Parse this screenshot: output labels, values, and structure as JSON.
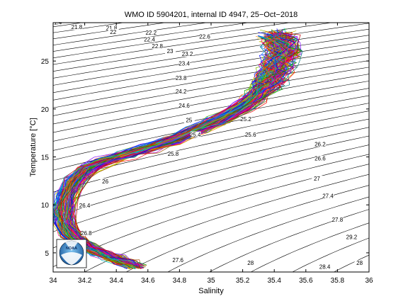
{
  "chart_data": {
    "type": "line",
    "title": "WMO ID 5904201, internal ID 4947, 25−Oct−2018",
    "xlabel": "Salinity",
    "ylabel": "Temperature [°C]",
    "xlim": [
      34,
      36
    ],
    "ylim": [
      3,
      29
    ],
    "xticks": [
      "34",
      "34.2",
      "34.4",
      "34.6",
      "34.8",
      "35",
      "35.2",
      "35.4",
      "35.6",
      "35.8",
      "36"
    ],
    "yticks": [
      "5",
      "10",
      "15",
      "20",
      "25"
    ],
    "grid": false,
    "isopycnal_labels": [
      {
        "text": "21.4",
        "s": 34.02,
        "t": 28.9
      },
      {
        "text": "21.8",
        "s": 34.15,
        "t": 28.4
      },
      {
        "text": "21.8",
        "s": 34.37,
        "t": 28.3
      },
      {
        "text": "22",
        "s": 34.38,
        "t": 27.9
      },
      {
        "text": "22.2",
        "s": 34.62,
        "t": 27.8
      },
      {
        "text": "22.4",
        "s": 34.61,
        "t": 27.1
      },
      {
        "text": "22.6",
        "s": 34.96,
        "t": 27.4
      },
      {
        "text": "22.8",
        "s": 34.66,
        "t": 26.4
      },
      {
        "text": "23",
        "s": 34.74,
        "t": 25.9
      },
      {
        "text": "23.2",
        "s": 34.85,
        "t": 25.6
      },
      {
        "text": "23.4",
        "s": 34.83,
        "t": 24.6
      },
      {
        "text": "23.8",
        "s": 34.81,
        "t": 23.1
      },
      {
        "text": "24.2",
        "s": 34.81,
        "t": 21.7
      },
      {
        "text": "24.6",
        "s": 34.83,
        "t": 20.2
      },
      {
        "text": "25",
        "s": 34.86,
        "t": 18.7
      },
      {
        "text": "25.2",
        "s": 35.22,
        "t": 18.8
      },
      {
        "text": "25.4",
        "s": 34.9,
        "t": 17.2
      },
      {
        "text": "25.6",
        "s": 35.25,
        "t": 17.2
      },
      {
        "text": "25.8",
        "s": 34.76,
        "t": 15.2
      },
      {
        "text": "26.2",
        "s": 35.69,
        "t": 16.2
      },
      {
        "text": "26.6",
        "s": 35.69,
        "t": 14.7
      },
      {
        "text": "26",
        "s": 34.33,
        "t": 12.3
      },
      {
        "text": "27",
        "s": 35.67,
        "t": 12.6
      },
      {
        "text": "26.4",
        "s": 34.2,
        "t": 9.8
      },
      {
        "text": "27.4",
        "s": 35.74,
        "t": 10.8
      },
      {
        "text": "26.8",
        "s": 34.21,
        "t": 6.9
      },
      {
        "text": "27.8",
        "s": 35.8,
        "t": 8.3
      },
      {
        "text": "29.2",
        "s": 35.89,
        "t": 6.5
      },
      {
        "text": "27.6",
        "s": 34.79,
        "t": 4.1
      },
      {
        "text": "28",
        "s": 35.25,
        "t": 3.8
      },
      {
        "text": "28.4",
        "s": 35.72,
        "t": 3.4
      },
      {
        "text": "28",
        "s": 35.94,
        "t": 3.8
      }
    ],
    "profiles_mean": {
      "name": "",
      "s": [
        34.52,
        34.46,
        34.38,
        34.3,
        34.2,
        34.12,
        34.08,
        34.07,
        34.09,
        34.14,
        34.22,
        34.33,
        34.46,
        34.6,
        34.75,
        34.9,
        35.05,
        35.2,
        35.28,
        35.34,
        35.37,
        35.4,
        35.42,
        35.44,
        35.46,
        35.44,
        35.43,
        35.42
      ],
      "t": [
        3.6,
        4.0,
        4.5,
        5.0,
        5.8,
        6.8,
        8.0,
        9.5,
        11.0,
        12.5,
        13.8,
        14.6,
        15.2,
        15.9,
        16.7,
        17.7,
        18.8,
        20.2,
        21.2,
        22.2,
        23.0,
        23.8,
        24.6,
        25.4,
        26.0,
        26.8,
        27.4,
        27.8
      ]
    },
    "profile_count": 140
  },
  "noaa_logo": {
    "text": "NOAA"
  }
}
